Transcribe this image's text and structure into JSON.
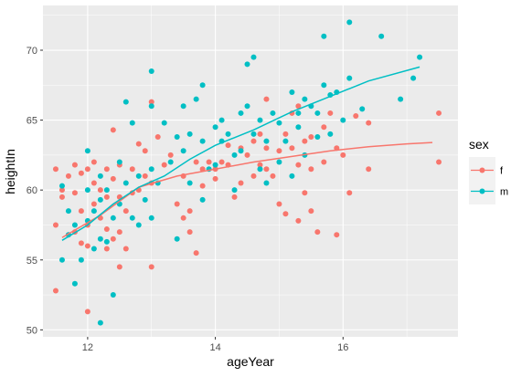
{
  "chart_data": {
    "type": "scatter",
    "title": "",
    "xlabel": "ageYear",
    "ylabel": "heightIn",
    "xlim": [
      11.3,
      17.8
    ],
    "ylim": [
      49.5,
      73.2
    ],
    "x_ticks": [
      12,
      14,
      16
    ],
    "y_ticks": [
      50,
      55,
      60,
      65,
      70
    ],
    "x_tick_labels": [
      "12",
      "14",
      "16"
    ],
    "y_tick_labels": [
      "50",
      "55",
      "60",
      "65",
      "70"
    ],
    "grid": true,
    "legend": {
      "title": "sex",
      "placement": "right",
      "entries": [
        "f",
        "m"
      ]
    },
    "colors": {
      "f": "#F8766D",
      "m": "#00BFC4",
      "panel": "#EBEBEB",
      "grid": "#FFFFFF"
    },
    "series": [
      {
        "name": "f",
        "points": [
          [
            11.5,
            52.8
          ],
          [
            11.5,
            57.5
          ],
          [
            11.5,
            61.5
          ],
          [
            11.6,
            59.5
          ],
          [
            11.6,
            60.0
          ],
          [
            11.7,
            56.8
          ],
          [
            11.7,
            61.0
          ],
          [
            11.8,
            57.0
          ],
          [
            11.8,
            61.8
          ],
          [
            11.8,
            59.8
          ],
          [
            11.9,
            56.2
          ],
          [
            11.9,
            58.5
          ],
          [
            11.9,
            61.2
          ],
          [
            12.0,
            51.3
          ],
          [
            12.0,
            56.0
          ],
          [
            12.0,
            57.5
          ],
          [
            12.0,
            61.5
          ],
          [
            12.1,
            59.0
          ],
          [
            12.1,
            60.5
          ],
          [
            12.1,
            62.0
          ],
          [
            12.2,
            58.0
          ],
          [
            12.2,
            60.0
          ],
          [
            12.3,
            55.8
          ],
          [
            12.3,
            57.2
          ],
          [
            12.3,
            59.5
          ],
          [
            12.3,
            61.5
          ],
          [
            12.4,
            56.5
          ],
          [
            12.4,
            60.8
          ],
          [
            12.4,
            64.3
          ],
          [
            12.5,
            57.0
          ],
          [
            12.5,
            59.5
          ],
          [
            12.5,
            54.5
          ],
          [
            12.5,
            61.8
          ],
          [
            12.6,
            55.8
          ],
          [
            12.6,
            58.5
          ],
          [
            12.7,
            59.8
          ],
          [
            12.7,
            61.5
          ],
          [
            12.8,
            63.3
          ],
          [
            12.8,
            60.0
          ],
          [
            12.9,
            61.0
          ],
          [
            12.9,
            62.8
          ],
          [
            13.0,
            54.5
          ],
          [
            13.0,
            60.5
          ],
          [
            13.0,
            66.3
          ],
          [
            13.1,
            63.8
          ],
          [
            13.2,
            61.8
          ],
          [
            13.3,
            62.5
          ],
          [
            13.4,
            59.0
          ],
          [
            13.5,
            58.0
          ],
          [
            13.5,
            61.0
          ],
          [
            13.6,
            57.0
          ],
          [
            13.6,
            58.5
          ],
          [
            13.7,
            62.0
          ],
          [
            13.7,
            55.5
          ],
          [
            13.8,
            61.5
          ],
          [
            13.8,
            60.3
          ],
          [
            13.9,
            62.0
          ],
          [
            14.0,
            61.5
          ],
          [
            14.0,
            60.8
          ],
          [
            14.1,
            62.0
          ],
          [
            14.2,
            63.2
          ],
          [
            14.2,
            61.8
          ],
          [
            14.3,
            59.5
          ],
          [
            14.4,
            63.0
          ],
          [
            14.4,
            60.5
          ],
          [
            14.5,
            62.5
          ],
          [
            14.6,
            63.5
          ],
          [
            14.6,
            61.0
          ],
          [
            14.7,
            64.0
          ],
          [
            14.7,
            61.8
          ],
          [
            14.8,
            66.5
          ],
          [
            14.8,
            63.0
          ],
          [
            14.8,
            61.5
          ],
          [
            14.9,
            61.0
          ],
          [
            15.0,
            59.0
          ],
          [
            15.0,
            62.8
          ],
          [
            15.1,
            58.3
          ],
          [
            15.1,
            64.0
          ],
          [
            15.2,
            65.5
          ],
          [
            15.2,
            63.0
          ],
          [
            15.3,
            66.0
          ],
          [
            15.3,
            61.8
          ],
          [
            15.3,
            57.8
          ],
          [
            15.4,
            63.5
          ],
          [
            15.4,
            59.8
          ],
          [
            15.5,
            63.8
          ],
          [
            15.5,
            61.5
          ],
          [
            15.5,
            58.5
          ],
          [
            15.6,
            57.0
          ],
          [
            15.7,
            64.5
          ],
          [
            15.7,
            62.0
          ],
          [
            15.8,
            65.5
          ],
          [
            15.9,
            56.8
          ],
          [
            15.9,
            63.0
          ],
          [
            16.0,
            62.5
          ],
          [
            16.1,
            59.8
          ],
          [
            16.2,
            65.3
          ],
          [
            16.4,
            61.5
          ],
          [
            16.4,
            64.8
          ],
          [
            17.5,
            65.5
          ],
          [
            17.5,
            62.0
          ]
        ],
        "trend": [
          [
            11.6,
            56.6
          ],
          [
            12.2,
            58.2
          ],
          [
            12.8,
            60.2
          ],
          [
            13.4,
            61.0
          ],
          [
            14.0,
            61.5
          ],
          [
            14.6,
            62.0
          ],
          [
            15.2,
            62.4
          ],
          [
            15.8,
            62.8
          ],
          [
            16.4,
            63.1
          ],
          [
            17.0,
            63.3
          ],
          [
            17.4,
            63.4
          ]
        ]
      },
      {
        "name": "m",
        "points": [
          [
            11.6,
            60.3
          ],
          [
            11.6,
            55.0
          ],
          [
            11.7,
            58.5
          ],
          [
            11.7,
            56.8
          ],
          [
            11.8,
            53.3
          ],
          [
            11.8,
            57.5
          ],
          [
            11.9,
            55.0
          ],
          [
            12.0,
            57.8
          ],
          [
            12.0,
            60.0
          ],
          [
            12.0,
            62.8
          ],
          [
            12.1,
            55.8
          ],
          [
            12.1,
            58.5
          ],
          [
            12.2,
            56.5
          ],
          [
            12.2,
            59.3
          ],
          [
            12.2,
            50.5
          ],
          [
            12.2,
            61.0
          ],
          [
            12.3,
            60.0
          ],
          [
            12.3,
            56.3
          ],
          [
            12.4,
            52.5
          ],
          [
            12.4,
            58.0
          ],
          [
            12.5,
            59.0
          ],
          [
            12.5,
            62.0
          ],
          [
            12.6,
            60.5
          ],
          [
            12.6,
            66.3
          ],
          [
            12.7,
            58.0
          ],
          [
            12.7,
            64.8
          ],
          [
            12.8,
            57.5
          ],
          [
            12.8,
            61.0
          ],
          [
            12.9,
            59.3
          ],
          [
            13.0,
            58.0
          ],
          [
            13.0,
            61.5
          ],
          [
            13.0,
            66.0
          ],
          [
            13.0,
            68.5
          ],
          [
            13.1,
            60.5
          ],
          [
            13.2,
            64.8
          ],
          [
            13.3,
            62.0
          ],
          [
            13.4,
            63.8
          ],
          [
            13.4,
            56.5
          ],
          [
            13.5,
            66.0
          ],
          [
            13.5,
            62.8
          ],
          [
            13.6,
            60.5
          ],
          [
            13.6,
            64.0
          ],
          [
            13.7,
            66.5
          ],
          [
            13.8,
            59.3
          ],
          [
            13.8,
            63.5
          ],
          [
            13.8,
            67.5
          ],
          [
            13.9,
            61.5
          ],
          [
            14.0,
            64.5
          ],
          [
            14.0,
            61.8
          ],
          [
            14.1,
            63.5
          ],
          [
            14.1,
            65.0
          ],
          [
            14.2,
            64.0
          ],
          [
            14.3,
            62.5
          ],
          [
            14.3,
            60.0
          ],
          [
            14.4,
            65.5
          ],
          [
            14.4,
            62.8
          ],
          [
            14.5,
            66.0
          ],
          [
            14.5,
            69.0
          ],
          [
            14.6,
            64.0
          ],
          [
            14.6,
            69.5
          ],
          [
            14.7,
            61.5
          ],
          [
            14.7,
            65.0
          ],
          [
            14.8,
            60.5
          ],
          [
            14.8,
            63.5
          ],
          [
            14.9,
            65.5
          ],
          [
            15.0,
            62.0
          ],
          [
            15.0,
            64.8
          ],
          [
            15.1,
            63.5
          ],
          [
            15.2,
            67.0
          ],
          [
            15.2,
            61.0
          ],
          [
            15.3,
            64.5
          ],
          [
            15.3,
            65.5
          ],
          [
            15.4,
            66.5
          ],
          [
            15.4,
            62.5
          ],
          [
            15.5,
            66.0
          ],
          [
            15.6,
            65.5
          ],
          [
            15.6,
            63.8
          ],
          [
            15.7,
            71.0
          ],
          [
            15.7,
            67.5
          ],
          [
            15.8,
            66.8
          ],
          [
            15.8,
            64.0
          ],
          [
            15.9,
            67.0
          ],
          [
            16.0,
            65.0
          ],
          [
            16.1,
            72.0
          ],
          [
            16.1,
            68.0
          ],
          [
            16.3,
            65.8
          ],
          [
            16.6,
            71.0
          ],
          [
            16.9,
            66.5
          ],
          [
            17.1,
            68.0
          ],
          [
            17.2,
            69.5
          ]
        ],
        "trend": [
          [
            11.6,
            56.4
          ],
          [
            12.0,
            57.5
          ],
          [
            12.4,
            59.0
          ],
          [
            12.8,
            60.2
          ],
          [
            13.2,
            61.0
          ],
          [
            13.6,
            62.2
          ],
          [
            14.0,
            63.2
          ],
          [
            14.6,
            64.3
          ],
          [
            15.2,
            65.6
          ],
          [
            15.8,
            66.7
          ],
          [
            16.4,
            67.8
          ],
          [
            17.2,
            68.8
          ]
        ]
      }
    ]
  }
}
